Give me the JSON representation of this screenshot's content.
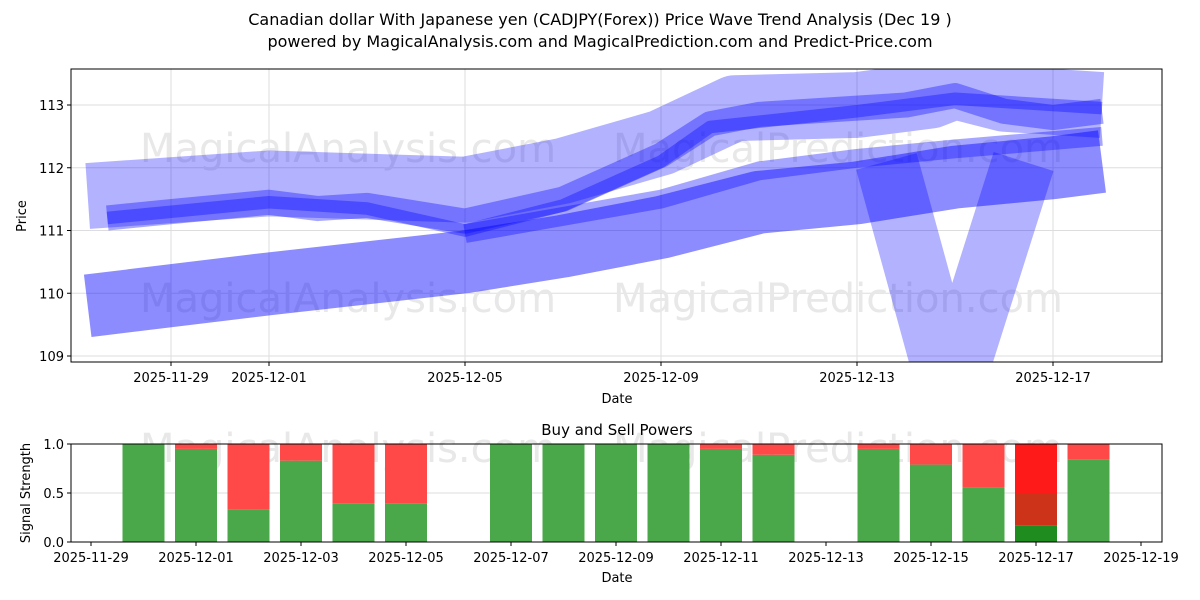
{
  "title_line1": "Canadian dollar With Japanese yen (CADJPY(Forex)) Price Wave Trend Analysis (Dec 19 )",
  "title_line2": "powered by MagicalAnalysis.com and MagicalPrediction.com and Predict-Price.com",
  "watermarks": [
    "MagicalAnalysis.com",
    "MagicalPrediction.com"
  ],
  "chart_data": [
    {
      "type": "area",
      "title": "",
      "xlabel": "Date",
      "ylabel": "Price",
      "ylim": [
        108.9,
        113.55
      ],
      "yticks": [
        109,
        110,
        111,
        112,
        113
      ],
      "xticks": [
        "2025-11-29",
        "2025-12-01",
        "2025-12-05",
        "2025-12-09",
        "2025-12-13",
        "2025-12-17"
      ],
      "color": "#0000ff",
      "bands": [
        {
          "name": "lower-trend-band",
          "width": 1.0,
          "opacity": 0.45,
          "points": [
            [
              "2025-11-27.3",
              109.8
            ],
            [
              "2025-12-01",
              110.15
            ],
            [
              "2025-12-05",
              110.5
            ],
            [
              "2025-12-07",
              110.75
            ],
            [
              "2025-12-09",
              111.05
            ],
            [
              "2025-12-11",
              111.45
            ],
            [
              "2025-12-13",
              111.6
            ],
            [
              "2025-12-15",
              111.85
            ],
            [
              "2025-12-17",
              112.0
            ],
            [
              "2025-12-18",
              112.1
            ]
          ]
        },
        {
          "name": "upper-trend-band",
          "width": 1.05,
          "opacity": 0.3,
          "points": [
            [
              "2025-11-27.3",
              111.55
            ],
            [
              "2025-12-01",
              111.75
            ],
            [
              "2025-12-05",
              111.65
            ],
            [
              "2025-12-07",
              111.95
            ],
            [
              "2025-12-09",
              112.4
            ],
            [
              "2025-12-10.5",
              112.95
            ],
            [
              "2025-12-13",
              113.0
            ],
            [
              "2025-12-14.5",
              113.15
            ],
            [
              "2025-12-15",
              113.3
            ],
            [
              "2025-12-16",
              113.1
            ],
            [
              "2025-12-18",
              113.0
            ]
          ]
        },
        {
          "name": "dip-band",
          "width": 1.0,
          "opacity": 0.3,
          "points": [
            [
              "2025-12-13.6",
              112.1
            ],
            [
              "2025-12-14.9",
              108.4
            ],
            [
              "2025-12-16.4",
              112.1
            ]
          ]
        },
        {
          "name": "price-wave-band",
          "width": 0.4,
          "opacity": 0.35,
          "points": [
            [
              "2025-11-27.7",
              111.2
            ],
            [
              "2025-11-29",
              111.3
            ],
            [
              "2025-12-01",
              111.45
            ],
            [
              "2025-12-02",
              111.35
            ],
            [
              "2025-12-03",
              111.4
            ],
            [
              "2025-12-05",
              111.15
            ],
            [
              "2025-12-07",
              111.5
            ],
            [
              "2025-12-09",
              112.2
            ],
            [
              "2025-12-10",
              112.7
            ],
            [
              "2025-12-11",
              112.85
            ],
            [
              "2025-12-13",
              112.95
            ],
            [
              "2025-12-14",
              113.0
            ],
            [
              "2025-12-15",
              113.15
            ],
            [
              "2025-12-16",
              112.9
            ],
            [
              "2025-12-17",
              112.8
            ],
            [
              "2025-12-18",
              112.9
            ]
          ]
        },
        {
          "name": "price-wave-core",
          "width": 0.2,
          "opacity": 0.35,
          "points": [
            [
              "2025-11-27.7",
              111.2
            ],
            [
              "2025-12-01",
              111.45
            ],
            [
              "2025-12-03",
              111.35
            ],
            [
              "2025-12-05",
              111.0
            ],
            [
              "2025-12-07",
              111.4
            ],
            [
              "2025-12-09",
              112.1
            ],
            [
              "2025-12-10",
              112.65
            ],
            [
              "2025-12-13",
              112.9
            ],
            [
              "2025-12-15",
              113.1
            ],
            [
              "2025-12-18",
              112.95
            ]
          ]
        },
        {
          "name": "mid-trend-line",
          "width": 0.3,
          "opacity": 0.35,
          "points": [
            [
              "2025-12-05",
              110.95
            ],
            [
              "2025-12-09",
              111.5
            ],
            [
              "2025-12-11",
              111.95
            ],
            [
              "2025-12-13",
              112.15
            ],
            [
              "2025-12-15",
              112.3
            ],
            [
              "2025-12-18",
              112.5
            ]
          ]
        }
      ]
    },
    {
      "type": "bar",
      "title": "Buy and Sell Powers",
      "xlabel": "Date",
      "ylabel": "Signal Strength",
      "ylim": [
        0,
        1
      ],
      "yticks": [
        "0.0",
        "0.5",
        "1.0"
      ],
      "xticks": [
        "2025-11-29",
        "2025-12-01",
        "2025-12-03",
        "2025-12-05",
        "2025-12-07",
        "2025-12-09",
        "2025-12-11",
        "2025-12-13",
        "2025-12-15",
        "2025-12-17",
        "2025-12-19"
      ],
      "buy_color": "#4aa84a",
      "sell_color": "#ff4848",
      "categories": [
        "2025-11-30",
        "2025-12-01",
        "2025-12-02",
        "2025-12-03",
        "2025-12-04",
        "2025-12-05",
        "2025-12-07",
        "2025-12-08",
        "2025-12-09",
        "2025-12-10",
        "2025-12-11",
        "2025-12-12",
        "2025-12-14",
        "2025-12-15",
        "2025-12-16",
        "2025-12-17",
        "2025-12-18"
      ],
      "series": [
        {
          "name": "Buy",
          "values": [
            1.0,
            0.95,
            0.33,
            0.83,
            0.39,
            0.39,
            1.0,
            1.0,
            1.0,
            1.0,
            0.95,
            0.89,
            0.95,
            0.79,
            0.56,
            0.17,
            0.84
          ]
        },
        {
          "name": "Sell",
          "values": [
            0.0,
            0.05,
            0.67,
            0.17,
            0.61,
            0.61,
            0.0,
            0.0,
            0.0,
            0.0,
            0.05,
            0.11,
            0.05,
            0.21,
            0.44,
            0.83,
            0.16
          ]
        }
      ],
      "highlight": {
        "date": "2025-12-17",
        "segments": [
          {
            "from": 0,
            "to": 0.17,
            "color": "#1e8c1e"
          },
          {
            "from": 0.17,
            "to": 0.5,
            "color": "#cc3319"
          },
          {
            "from": 0.5,
            "to": 1.0,
            "color": "#ff1a1a"
          }
        ]
      }
    }
  ]
}
